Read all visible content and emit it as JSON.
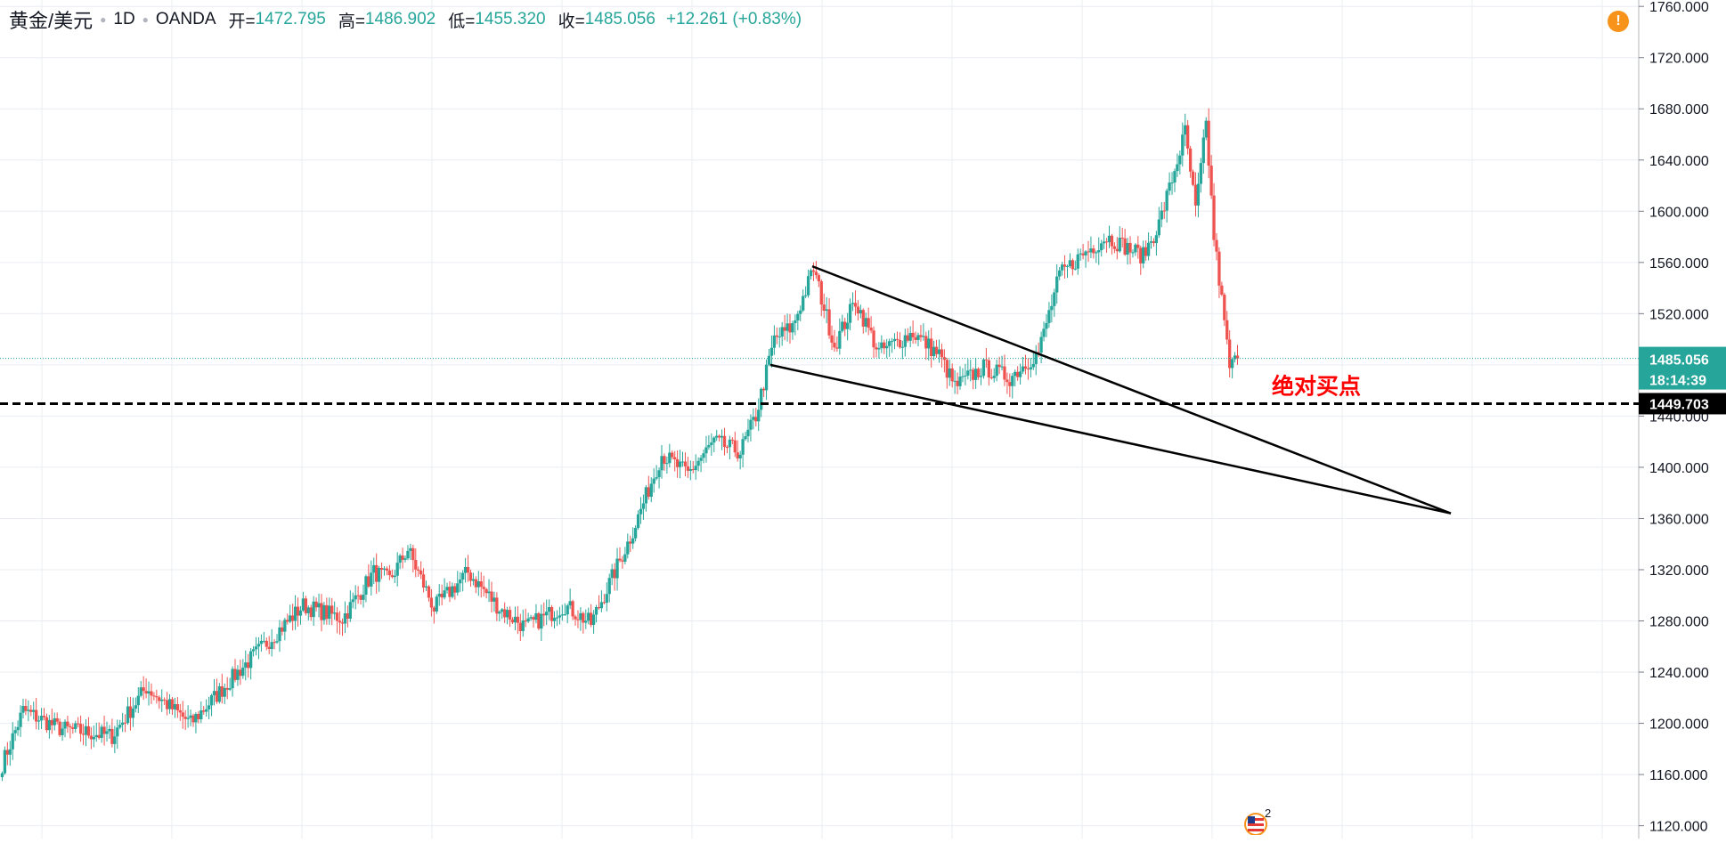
{
  "legend": {
    "symbol": "黄金/美元",
    "interval": "1D",
    "source": "OANDA",
    "open_label": "开=",
    "open": "1472.795",
    "high_label": "高=",
    "high": "1486.902",
    "low_label": "低=",
    "low": "1455.320",
    "close_label": "收=",
    "close": "1485.056",
    "change": "+12.261 (+0.83%)"
  },
  "alert_icon": "exclamation-icon",
  "event_badge": {
    "icon": "us-flag-icon",
    "count": "2"
  },
  "colors": {
    "up": "#26a69a",
    "down": "#ef5350",
    "axis_bg": "#ffffff",
    "grid": "#e9edf2",
    "annotation": "#ff0000"
  },
  "chart_data": {
    "type": "candlestick",
    "y_axis": {
      "position": "right",
      "ylim": [
        1110,
        1765
      ],
      "ticks": [
        "1120.000",
        "1160.000",
        "1200.000",
        "1240.000",
        "1280.000",
        "1320.000",
        "1360.000",
        "1400.000",
        "1440.000",
        "1480.000",
        "1520.000",
        "1560.000",
        "1600.000",
        "1640.000",
        "1680.000",
        "1720.000",
        "1760.000"
      ]
    },
    "grid": true,
    "last_price": {
      "value": 1485.056,
      "label": "1485.056",
      "countdown": "18:14:39",
      "color": "#26a69a"
    },
    "horizontal_level": {
      "value": 1449.703,
      "label": "1449.703",
      "style": "dashed",
      "color": "#000000"
    },
    "annotation": {
      "text": "绝对买点",
      "price": 1465,
      "color": "#ff0000"
    },
    "trend_lines": [
      {
        "from": {
          "bar": 310,
          "price": 1557
        },
        "to": {
          "bar": 554,
          "price": 1364
        }
      },
      {
        "from": {
          "bar": 294,
          "price": 1480
        },
        "to": {
          "bar": 554,
          "price": 1364
        }
      }
    ],
    "total_bars": 554,
    "anchors": [
      [
        0,
        1168
      ],
      [
        8,
        1210
      ],
      [
        22,
        1196
      ],
      [
        42,
        1190
      ],
      [
        55,
        1228
      ],
      [
        72,
        1200
      ],
      [
        90,
        1240
      ],
      [
        115,
        1292
      ],
      [
        130,
        1282
      ],
      [
        142,
        1318
      ],
      [
        148,
        1312
      ],
      [
        155,
        1336
      ],
      [
        165,
        1290
      ],
      [
        178,
        1318
      ],
      [
        190,
        1290
      ],
      [
        200,
        1275
      ],
      [
        215,
        1292
      ],
      [
        225,
        1278
      ],
      [
        240,
        1345
      ],
      [
        252,
        1410
      ],
      [
        262,
        1395
      ],
      [
        272,
        1420
      ],
      [
        282,
        1412
      ],
      [
        288,
        1440
      ],
      [
        295,
        1500
      ],
      [
        302,
        1510
      ],
      [
        310,
        1555
      ],
      [
        318,
        1495
      ],
      [
        326,
        1530
      ],
      [
        335,
        1490
      ],
      [
        348,
        1505
      ],
      [
        358,
        1488
      ],
      [
        364,
        1463
      ],
      [
        375,
        1478
      ],
      [
        385,
        1470
      ],
      [
        396,
        1490
      ],
      [
        404,
        1550
      ],
      [
        412,
        1565
      ],
      [
        422,
        1580
      ],
      [
        436,
        1565
      ],
      [
        442,
        1590
      ],
      [
        448,
        1632
      ],
      [
        452,
        1662
      ],
      [
        456,
        1600
      ],
      [
        460,
        1668
      ],
      [
        463,
        1580
      ],
      [
        466,
        1530
      ],
      [
        469,
        1478
      ],
      [
        472,
        1485
      ]
    ]
  }
}
